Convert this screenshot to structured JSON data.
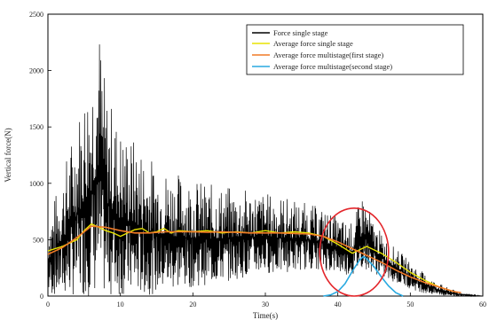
{
  "chart_data": {
    "type": "line",
    "title": "",
    "xlabel": "Time(s)",
    "ylabel": "Vertical force(N)",
    "xlim": [
      0,
      60
    ],
    "ylim": [
      0,
      2500
    ],
    "x_ticks": [
      0,
      10,
      20,
      30,
      40,
      50,
      60
    ],
    "y_ticks": [
      0,
      500,
      1000,
      1500,
      2000,
      2500
    ],
    "grid": false,
    "legend_position": "top-right",
    "series": [
      {
        "name": "Force single stage",
        "color": "#000000",
        "style": "noisy",
        "x": [
          0,
          2,
          4,
          6,
          7,
          8,
          10,
          12,
          14,
          16,
          18,
          20,
          22,
          24,
          26,
          28,
          30,
          32,
          34,
          36,
          38,
          40,
          42,
          43.5,
          45,
          47,
          49,
          51,
          53,
          55,
          57,
          60
        ],
        "low": [
          0,
          0,
          0,
          0,
          0,
          0,
          0,
          0,
          10,
          40,
          60,
          80,
          100,
          120,
          150,
          180,
          200,
          200,
          220,
          240,
          230,
          200,
          180,
          250,
          200,
          140,
          90,
          40,
          10,
          0,
          0,
          0
        ],
        "high": [
          700,
          1100,
          1600,
          2100,
          2500,
          1850,
          1500,
          1400,
          1250,
          1150,
          1100,
          1050,
          1000,
          980,
          960,
          950,
          920,
          900,
          860,
          820,
          780,
          700,
          650,
          930,
          650,
          480,
          370,
          250,
          150,
          80,
          30,
          0
        ]
      },
      {
        "name": "Average force single stage",
        "color": "#e8e400",
        "x": [
          0,
          2,
          4,
          5,
          6,
          7,
          8,
          9,
          10,
          11,
          12,
          13,
          14,
          15,
          16,
          17,
          18,
          20,
          22,
          24,
          26,
          28,
          30,
          32,
          34,
          36,
          38,
          40,
          42,
          43,
          44,
          46,
          48,
          50,
          52,
          54,
          56
        ],
        "y": [
          400,
          440,
          500,
          580,
          640,
          610,
          580,
          560,
          530,
          560,
          590,
          600,
          560,
          570,
          600,
          560,
          580,
          570,
          580,
          560,
          570,
          560,
          580,
          560,
          570,
          560,
          530,
          460,
          380,
          410,
          440,
          380,
          300,
          210,
          140,
          80,
          40
        ]
      },
      {
        "name": "Average force multistage(first stage)",
        "color": "#f07a26",
        "x": [
          0,
          2,
          4,
          6,
          8,
          10,
          12,
          14,
          16,
          18,
          20,
          22,
          24,
          26,
          28,
          30,
          32,
          34,
          36,
          38,
          40,
          42,
          44,
          46,
          48,
          50,
          52,
          54,
          56,
          57
        ],
        "y": [
          370,
          430,
          520,
          620,
          610,
          580,
          560,
          560,
          570,
          570,
          570,
          565,
          570,
          565,
          560,
          560,
          560,
          555,
          550,
          530,
          480,
          420,
          360,
          300,
          230,
          170,
          120,
          80,
          40,
          30
        ]
      },
      {
        "name": "Average force multistage(second stage)",
        "color": "#29a9e0",
        "x": [
          38,
          39,
          40,
          41,
          42,
          43,
          43.5,
          44,
          45,
          46,
          47,
          48,
          49
        ],
        "y": [
          0,
          10,
          40,
          110,
          220,
          320,
          350,
          330,
          260,
          170,
          90,
          30,
          0
        ]
      }
    ]
  },
  "annotation": {
    "type": "ellipse",
    "color": "#e3262b",
    "x_range": [
      37.5,
      47
    ],
    "y_range": [
      0,
      780
    ]
  }
}
